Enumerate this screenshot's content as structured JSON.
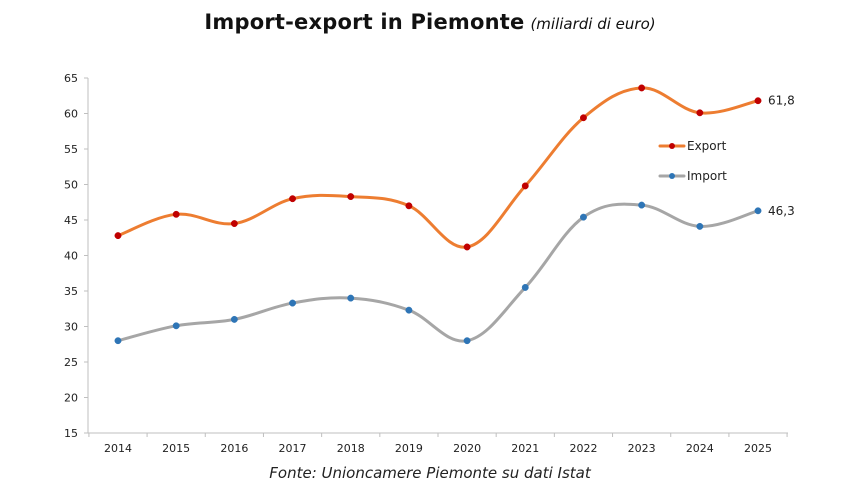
{
  "title": "Import-export in Piemonte",
  "subtitle": "(miliardi di euro)",
  "source": "Fonte: Unioncamere Piemonte su dati Istat",
  "chart_data": {
    "type": "line",
    "categories": [
      "2014",
      "2015",
      "2016",
      "2017",
      "2018",
      "2019",
      "2020",
      "2021",
      "2022",
      "2023",
      "2024",
      "2025"
    ],
    "series": [
      {
        "name": "Export",
        "color": "#ed7d31",
        "marker_color": "#c00000",
        "values": [
          42.8,
          45.8,
          44.5,
          48.0,
          48.3,
          47.0,
          41.2,
          49.8,
          59.4,
          63.6,
          60.1,
          61.8
        ],
        "end_label": "61,8"
      },
      {
        "name": "Import",
        "color": "#a6a6a6",
        "marker_color": "#2e75b6",
        "values": [
          28.0,
          30.1,
          31.0,
          33.3,
          34.0,
          32.3,
          28.0,
          35.5,
          45.4,
          47.1,
          44.1,
          46.3
        ],
        "end_label": "46,3"
      }
    ],
    "ylim": [
      15,
      65
    ],
    "yticks": [
      "15",
      "20",
      "25",
      "30",
      "35",
      "40",
      "45",
      "50",
      "55",
      "60",
      "65"
    ],
    "legend": "right",
    "grid": false
  }
}
